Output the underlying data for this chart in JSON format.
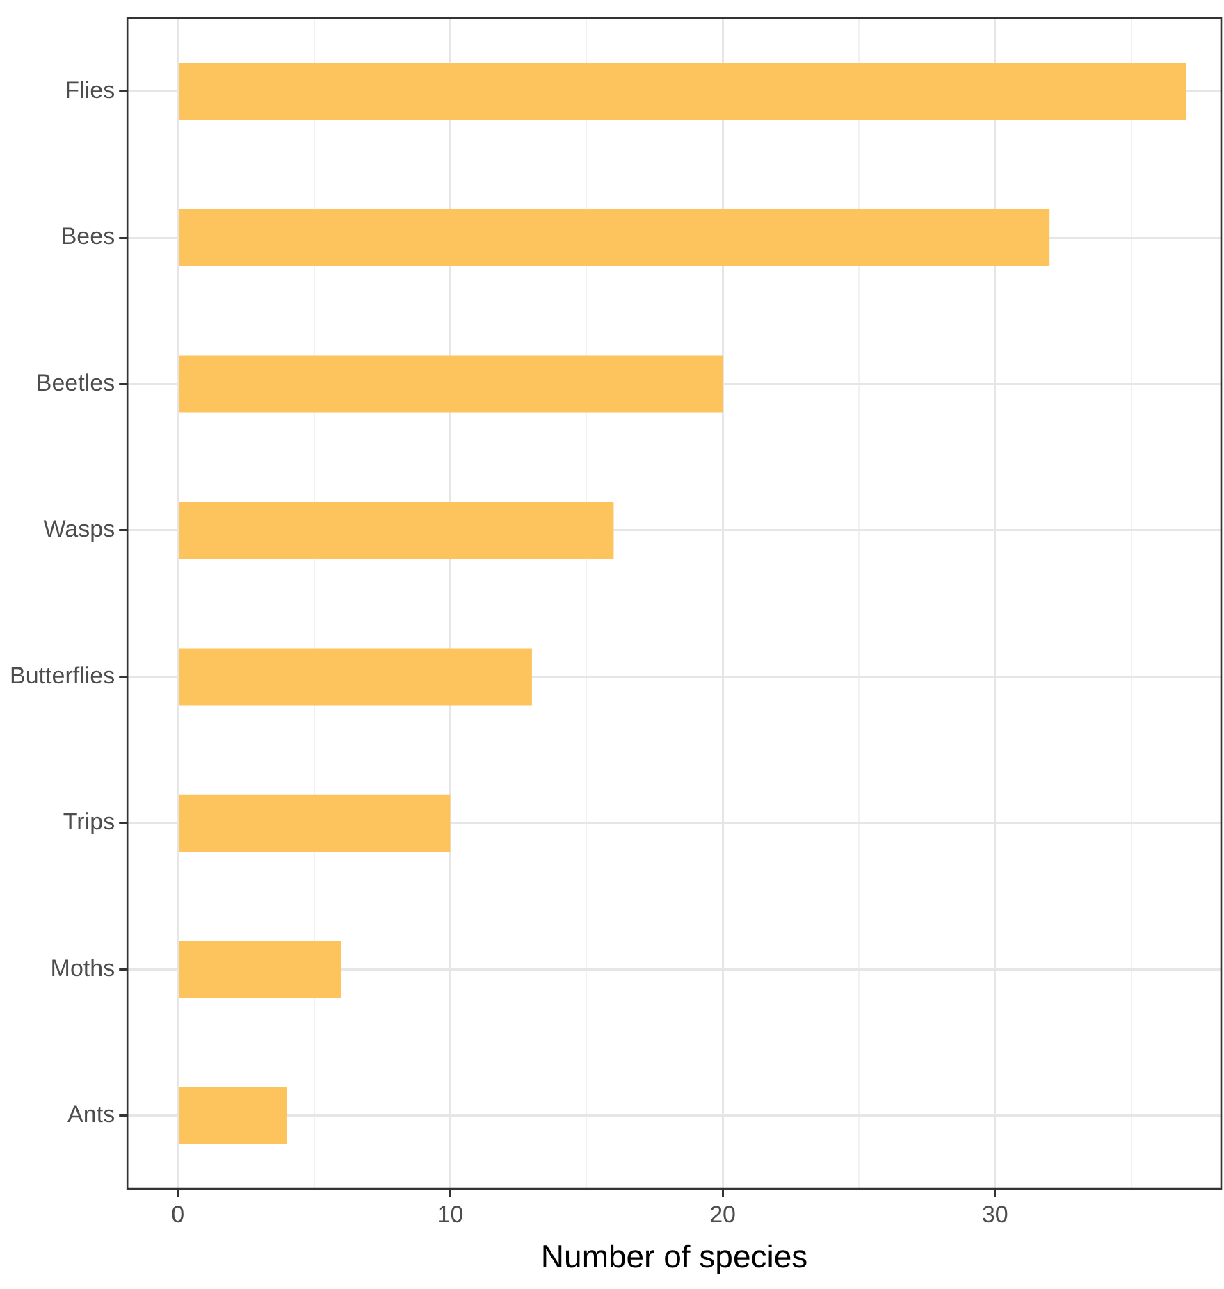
{
  "chart_data": {
    "type": "bar",
    "orientation": "horizontal",
    "xlabel": "Number of species",
    "categories": [
      "Flies",
      "Bees",
      "Beetles",
      "Wasps",
      "Butterflies",
      "Trips",
      "Moths",
      "Ants"
    ],
    "values": [
      37,
      32,
      20,
      16,
      13,
      10,
      6,
      4
    ],
    "color": "#fdc35c",
    "xlim": [
      -1.85,
      38.3
    ],
    "xticks": [
      0,
      {
        "value": 5,
        "label": null
      },
      10,
      {
        "value": 15,
        "label": null
      },
      20,
      {
        "value": 25,
        "label": null
      },
      30,
      {
        "value": 35,
        "label": null
      }
    ],
    "grid": true,
    "legend": false
  }
}
